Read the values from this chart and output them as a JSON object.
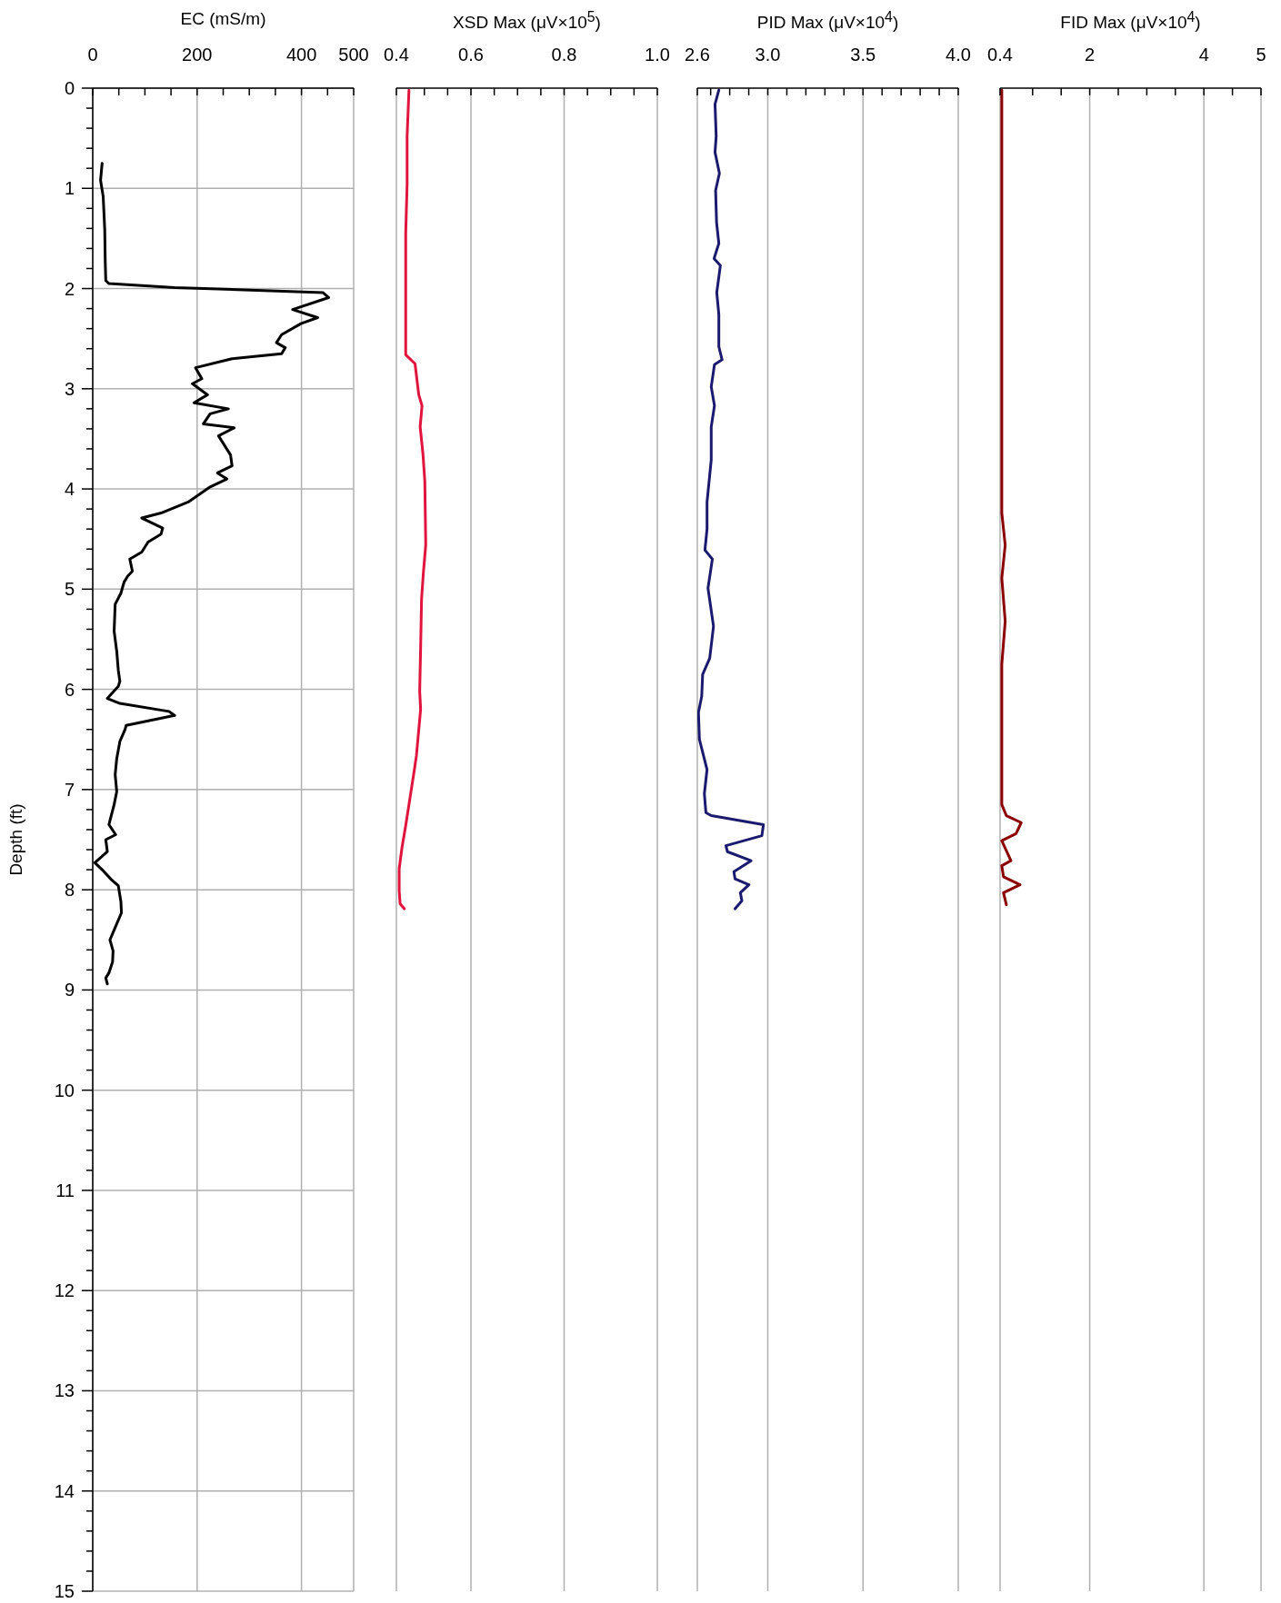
{
  "chart_data": [
    {
      "type": "line",
      "xlabel": "EC (mS/m)",
      "ylabel": "Depth (ft)",
      "xlim": [
        0,
        500
      ],
      "ylim": [
        15,
        0
      ],
      "grid": true,
      "xticks": [
        0,
        {
          "value": 50,
          "label": null
        },
        {
          "value": 100,
          "label": null
        },
        {
          "value": 150,
          "label": null
        },
        200,
        {
          "value": 250,
          "label": null
        },
        {
          "value": 300,
          "label": null
        },
        {
          "value": 350,
          "label": null
        },
        400,
        {
          "value": 450,
          "label": null
        },
        500
      ],
      "yticks": [
        0,
        {
          "value": 0.2,
          "label": null
        },
        {
          "value": 0.4,
          "label": null
        },
        {
          "value": 0.6,
          "label": null
        },
        {
          "value": 0.8,
          "label": null
        },
        1,
        {
          "value": 1.2,
          "label": null
        },
        {
          "value": 1.4,
          "label": null
        },
        {
          "value": 1.6,
          "label": null
        },
        {
          "value": 1.8,
          "label": null
        },
        2,
        {
          "value": 2.2,
          "label": null
        },
        {
          "value": 2.4,
          "label": null
        },
        {
          "value": 2.6,
          "label": null
        },
        {
          "value": 2.8,
          "label": null
        },
        3,
        {
          "value": 3.2,
          "label": null
        },
        {
          "value": 3.4,
          "label": null
        },
        {
          "value": 3.6,
          "label": null
        },
        {
          "value": 3.8,
          "label": null
        },
        4,
        {
          "value": 4.2,
          "label": null
        },
        {
          "value": 4.4,
          "label": null
        },
        {
          "value": 4.6,
          "label": null
        },
        {
          "value": 4.8,
          "label": null
        },
        5,
        {
          "value": 5.2,
          "label": null
        },
        {
          "value": 5.4,
          "label": null
        },
        {
          "value": 5.6,
          "label": null
        },
        {
          "value": 5.8,
          "label": null
        },
        6,
        {
          "value": 6.2,
          "label": null
        },
        {
          "value": 6.4,
          "label": null
        },
        {
          "value": 6.6,
          "label": null
        },
        {
          "value": 6.8,
          "label": null
        },
        7,
        {
          "value": 7.2,
          "label": null
        },
        {
          "value": 7.4,
          "label": null
        },
        {
          "value": 7.6,
          "label": null
        },
        {
          "value": 7.8,
          "label": null
        },
        8,
        {
          "value": 8.2,
          "label": null
        },
        {
          "value": 8.4,
          "label": null
        },
        {
          "value": 8.6,
          "label": null
        },
        {
          "value": 8.8,
          "label": null
        },
        9,
        {
          "value": 9.2,
          "label": null
        },
        {
          "value": 9.4,
          "label": null
        },
        {
          "value": 9.6,
          "label": null
        },
        {
          "value": 9.8,
          "label": null
        },
        10,
        {
          "value": 10.2,
          "label": null
        },
        {
          "value": 10.4,
          "label": null
        },
        {
          "value": 10.6,
          "label": null
        },
        {
          "value": 10.8,
          "label": null
        },
        11,
        {
          "value": 11.2,
          "label": null
        },
        {
          "value": 11.4,
          "label": null
        },
        {
          "value": 11.6,
          "label": null
        },
        {
          "value": 11.8,
          "label": null
        },
        12,
        {
          "value": 12.2,
          "label": null
        },
        {
          "value": 12.4,
          "label": null
        },
        {
          "value": 12.6,
          "label": null
        },
        {
          "value": 12.8,
          "label": null
        },
        13,
        {
          "value": 13.2,
          "label": null
        },
        {
          "value": 13.4,
          "label": null
        },
        {
          "value": 13.6,
          "label": null
        },
        {
          "value": 13.8,
          "label": null
        },
        14,
        {
          "value": 14.2,
          "label": null
        },
        {
          "value": 14.4,
          "label": null
        },
        {
          "value": 14.6,
          "label": null
        },
        {
          "value": 14.8,
          "label": null
        },
        15
      ],
      "series": [
        {
          "color": "#000000",
          "x": [
            18,
            15,
            20,
            23,
            24,
            25,
            31,
            157,
            441,
            452,
            383,
            431,
            399,
            362,
            352,
            369,
            362,
            267,
            197,
            209,
            191,
            220,
            194,
            260,
            225,
            212,
            271,
            241,
            264,
            267,
            239,
            257,
            225,
            183,
            131,
            94,
            134,
            131,
            106,
            94,
            71,
            76,
            67,
            60,
            54,
            43,
            41,
            46,
            49,
            52,
            49,
            28,
            52,
            146,
            157,
            64,
            62,
            52,
            46,
            43,
            46,
            41,
            31,
            44,
            25,
            28,
            4,
            20,
            36,
            49,
            54,
            55,
            46,
            33,
            39,
            38,
            31,
            25,
            28
          ],
          "values": [
            0.75,
            0.92,
            1.08,
            1.41,
            1.74,
            1.92,
            1.95,
            1.99,
            2.04,
            2.09,
            2.21,
            2.29,
            2.35,
            2.46,
            2.54,
            2.59,
            2.65,
            2.7,
            2.79,
            2.9,
            2.95,
            3.06,
            3.14,
            3.2,
            3.25,
            3.35,
            3.39,
            3.47,
            3.66,
            3.77,
            3.84,
            3.9,
            3.98,
            4.13,
            4.24,
            4.29,
            4.39,
            4.45,
            4.53,
            4.63,
            4.7,
            4.82,
            4.87,
            4.93,
            5.04,
            5.15,
            5.42,
            5.62,
            5.81,
            5.92,
            5.97,
            6.09,
            6.14,
            6.22,
            6.26,
            6.36,
            6.4,
            6.52,
            6.69,
            6.85,
            7.02,
            7.15,
            7.35,
            7.45,
            7.5,
            7.62,
            7.73,
            7.81,
            7.9,
            7.96,
            8.12,
            8.23,
            8.34,
            8.5,
            8.61,
            8.72,
            8.83,
            8.88,
            8.94
          ]
        }
      ]
    },
    {
      "type": "line",
      "xlabel": "XSD Max (μV×10$^{5}$)",
      "xlim": [
        0.44,
        1.0
      ],
      "ylim": [
        15,
        0
      ],
      "grid": true,
      "tick_labels": "x",
      "xticks": [
        {
          "value": 0.44,
          "label": "0.4"
        },
        {
          "value": 0.5,
          "label": null
        },
        {
          "value": 0.55,
          "label": null
        },
        {
          "value": 0.6,
          "label": "0.6"
        },
        {
          "value": 0.65,
          "label": null
        },
        {
          "value": 0.7,
          "label": null
        },
        {
          "value": 0.75,
          "label": null
        },
        {
          "value": 0.8,
          "label": "0.8"
        },
        {
          "value": 0.85,
          "label": null
        },
        {
          "value": 0.9,
          "label": null
        },
        {
          "value": 0.95,
          "label": null
        },
        {
          "value": 1.0,
          "label": "1.0"
        }
      ],
      "yticks": [
        0,
        1,
        2,
        3,
        4,
        5,
        6,
        7,
        8,
        9,
        10,
        11,
        12,
        13,
        14,
        15
      ],
      "series": [
        {
          "color": "#e0143c",
          "x": [
            0.467,
            0.463,
            0.463,
            0.46,
            0.46,
            0.46,
            0.46,
            0.48,
            0.488,
            0.495,
            0.491,
            0.497,
            0.501,
            0.503,
            0.498,
            0.494,
            0.492,
            0.49,
            0.492,
            0.483,
            0.478,
            0.469,
            0.46,
            0.452,
            0.446,
            0.446,
            0.448,
            0.457
          ],
          "values": [
            0.02,
            0.48,
            0.96,
            1.45,
            1.98,
            2.52,
            2.66,
            2.75,
            3.06,
            3.17,
            3.38,
            3.65,
            3.92,
            4.56,
            4.83,
            5.1,
            5.59,
            6.02,
            6.2,
            6.66,
            6.82,
            7.09,
            7.36,
            7.58,
            7.79,
            8.01,
            8.14,
            8.19
          ]
        }
      ]
    },
    {
      "type": "line",
      "xlabel": "PID Max (μV×10$^{4}$)",
      "xlim": [
        2.63,
        4.0
      ],
      "ylim": [
        15,
        0
      ],
      "grid": true,
      "tick_labels": "x",
      "xticks": [
        {
          "value": 2.63,
          "label": "2.6"
        },
        {
          "value": 2.7,
          "label": null
        },
        {
          "value": 2.8,
          "label": null
        },
        {
          "value": 2.9,
          "label": null
        },
        {
          "value": 3.0,
          "label": "3.0"
        },
        {
          "value": 3.1,
          "label": null
        },
        {
          "value": 3.2,
          "label": null
        },
        {
          "value": 3.3,
          "label": null
        },
        {
          "value": 3.4,
          "label": null
        },
        {
          "value": 3.5,
          "label": "3.5"
        },
        {
          "value": 3.6,
          "label": null
        },
        {
          "value": 3.7,
          "label": null
        },
        {
          "value": 3.8,
          "label": null
        },
        {
          "value": 3.9,
          "label": null
        },
        {
          "value": 4.0,
          "label": "4.0"
        }
      ],
      "yticks": [
        0,
        1,
        2,
        3,
        4,
        5,
        6,
        7,
        8,
        9,
        10,
        11,
        12,
        13,
        14,
        15
      ],
      "series": [
        {
          "color": "#1a1a6e",
          "x": [
            2.743,
            2.723,
            2.729,
            2.723,
            2.746,
            2.726,
            2.731,
            2.743,
            2.718,
            2.751,
            2.732,
            2.743,
            2.743,
            2.76,
            2.72,
            2.703,
            2.72,
            2.703,
            2.703,
            2.681,
            2.681,
            2.67,
            2.709,
            2.686,
            2.715,
            2.695,
            2.658,
            2.653,
            2.636,
            2.641,
            2.681,
            2.667,
            2.675,
            2.703,
            2.977,
            2.969,
            2.78,
            2.788,
            2.912,
            2.822,
            2.828,
            2.901,
            2.856,
            2.864,
            2.828
          ],
          "values": [
            0.02,
            0.16,
            0.48,
            0.64,
            0.85,
            1.02,
            1.34,
            1.55,
            1.7,
            1.77,
            2.04,
            2.26,
            2.58,
            2.71,
            2.76,
            2.98,
            3.17,
            3.38,
            3.71,
            4.13,
            4.4,
            4.61,
            4.7,
            4.99,
            5.37,
            5.69,
            5.85,
            6.07,
            6.23,
            6.5,
            6.8,
            7.04,
            7.23,
            7.26,
            7.35,
            7.46,
            7.56,
            7.62,
            7.71,
            7.82,
            7.89,
            7.95,
            8.03,
            8.11,
            8.19
          ]
        }
      ]
    },
    {
      "type": "line",
      "xlabel": "FID Max (μV×10$^{4}$)",
      "xlim": [
        0.43,
        5
      ],
      "ylim": [
        15,
        0
      ],
      "grid": true,
      "tick_labels": "x",
      "xticks": [
        {
          "value": 0.43,
          "label": "0.4"
        },
        {
          "value": 1,
          "label": null
        },
        {
          "value": 1.5,
          "label": null
        },
        2,
        {
          "value": 2.5,
          "label": null
        },
        {
          "value": 3,
          "label": null
        },
        {
          "value": 3.5,
          "label": null
        },
        4,
        {
          "value": 4.5,
          "label": null
        },
        5
      ],
      "yticks": [
        0,
        1,
        2,
        3,
        4,
        5,
        6,
        7,
        8,
        9,
        10,
        11,
        12,
        13,
        14,
        15
      ],
      "series": [
        {
          "color": "#8b0000",
          "x": [
            0.46,
            0.46,
            0.46,
            0.52,
            0.46,
            0.52,
            0.46,
            0.46,
            0.54,
            0.8,
            0.71,
            0.46,
            0.62,
            0.46,
            0.49,
            0.78,
            0.49,
            0.54
          ],
          "values": [
            0.02,
            2.09,
            4.24,
            4.56,
            4.89,
            5.32,
            5.75,
            7.15,
            7.26,
            7.33,
            7.44,
            7.51,
            7.71,
            7.76,
            7.87,
            7.95,
            8.03,
            8.15
          ]
        }
      ]
    }
  ]
}
